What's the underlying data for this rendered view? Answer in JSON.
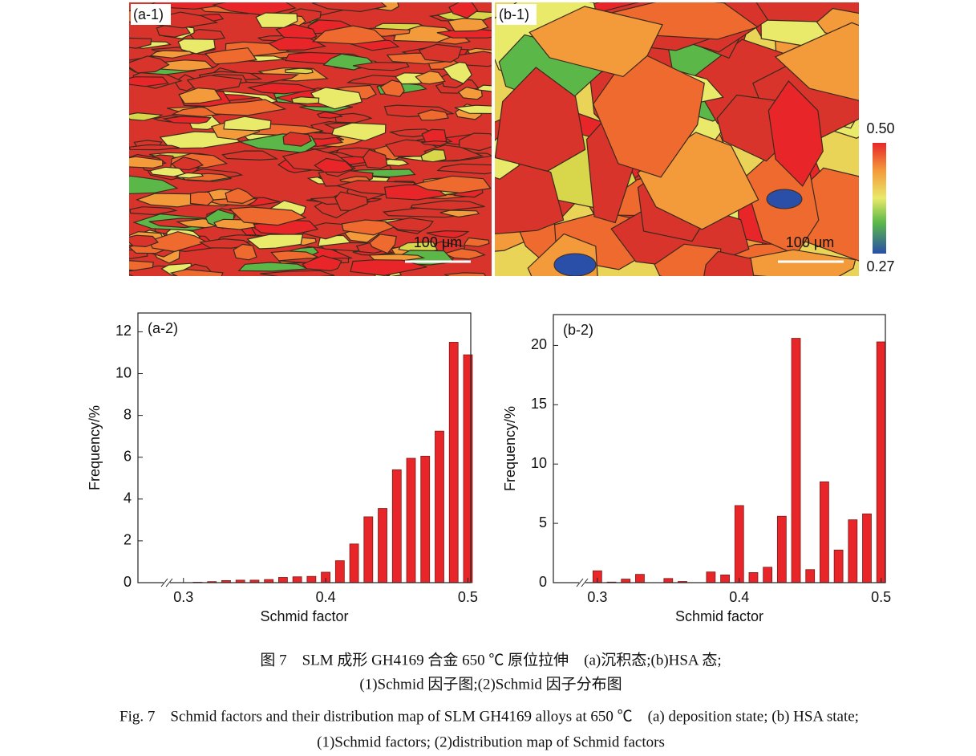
{
  "maps": [
    {
      "label": "(a-1)",
      "scale_bar": "100 μm"
    },
    {
      "label": "(b-1)",
      "scale_bar": "100 μm"
    }
  ],
  "colorbar": {
    "max": {
      "value": 0.5,
      "label": "0.50"
    },
    "min": 0.27
  },
  "chart_data": [
    {
      "type": "bar",
      "annotation": "(a-2)",
      "x_label": "Schmid factor",
      "y_label": "Frequency/%",
      "x": [
        0.3,
        0.31,
        0.32,
        0.33,
        0.34,
        0.35,
        0.36,
        0.37,
        0.38,
        0.39,
        0.4,
        0.41,
        0.42,
        0.43,
        0.44,
        0.45,
        0.46,
        0.47,
        0.48,
        0.49,
        0.5
      ],
      "values": [
        0.0,
        0.02,
        0.05,
        0.1,
        0.12,
        0.12,
        0.15,
        0.25,
        0.28,
        0.3,
        0.5,
        1.05,
        1.85,
        3.15,
        3.55,
        5.4,
        5.95,
        6.05,
        7.25,
        11.5,
        10.9
      ],
      "color": "#e8262a",
      "xlim": [
        0.268,
        0.502
      ],
      "ylim": [
        0,
        12.9
      ],
      "xticks": [
        0.3,
        0.4,
        0.5
      ],
      "yticks": [
        0,
        2,
        4,
        6,
        8,
        10,
        12
      ]
    },
    {
      "type": "bar",
      "annotation": "(b-2)",
      "x_label": "Schmid factor",
      "y_label": "Frequency/%",
      "x": [
        0.3,
        0.31,
        0.32,
        0.33,
        0.34,
        0.35,
        0.36,
        0.37,
        0.38,
        0.39,
        0.4,
        0.41,
        0.42,
        0.43,
        0.44,
        0.45,
        0.46,
        0.47,
        0.48,
        0.49,
        0.5
      ],
      "values": [
        1.0,
        0.05,
        0.3,
        0.7,
        0.0,
        0.35,
        0.1,
        0.0,
        0.9,
        0.65,
        6.5,
        0.85,
        1.3,
        5.6,
        20.6,
        1.1,
        8.5,
        2.75,
        5.3,
        5.8,
        20.3
      ],
      "color": "#e8262a",
      "xlim": [
        0.269,
        0.503
      ],
      "ylim": [
        0,
        22.6
      ],
      "xticks": [
        0.3,
        0.4,
        0.5
      ],
      "yticks": [
        0,
        5,
        10,
        15,
        20
      ]
    }
  ],
  "caption": {
    "cn": [
      "图 7　SLM 成形 GH4169 合金 650 ℃ 原位拉伸　(a)沉积态;(b)HSA 态;",
      "(1)Schmid 因子图;(2)Schmid 因子分布图"
    ],
    "en": [
      "Fig. 7　Schmid factors and their distribution map of SLM GH4169 alloys at 650 ℃　(a) deposition state; (b) HSA state;",
      "(1)Schmid factors; (2)distribution map of Schmid factors"
    ]
  }
}
